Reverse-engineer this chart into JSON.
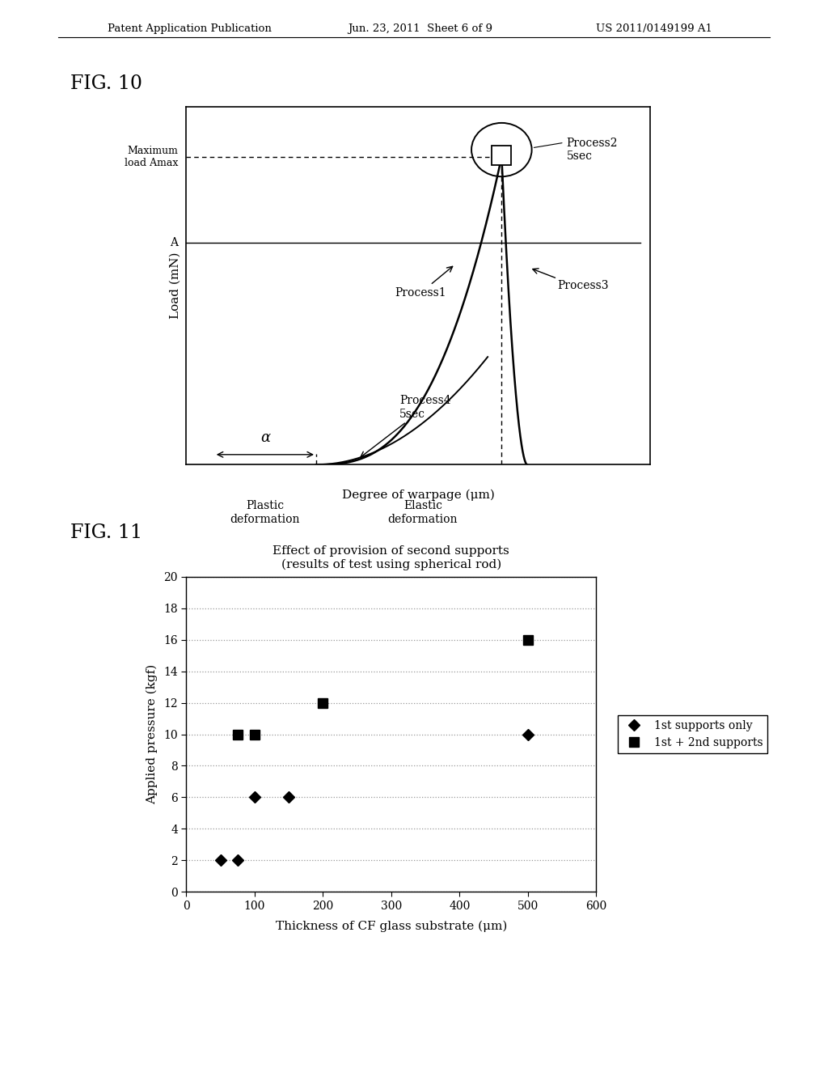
{
  "page_header_left": "Patent Application Publication",
  "page_header_mid": "Jun. 23, 2011  Sheet 6 of 9",
  "page_header_right": "US 2011/0149199 A1",
  "fig10_label": "FIG. 10",
  "fig10_ylabel": "Load (mN)",
  "fig10_xlabel": "Degree of warpage (μm)",
  "fig10_ann_max": "Maximum\nload Amax",
  "fig10_ann_A": "A",
  "fig10_ann_process1": "Process1",
  "fig10_ann_process2": "Process2\n5sec",
  "fig10_ann_process3": "Process3",
  "fig10_ann_process4": "Process4\n5sec",
  "fig10_ann_alpha": "α",
  "fig10_ann_plastic": "Plastic\ndeformation",
  "fig10_ann_elastic": "Elastic\ndeformation",
  "fig11_label": "FIG. 11",
  "fig11_title_line1": "Effect of provision of second supports",
  "fig11_title_line2": "(results of test using spherical rod)",
  "fig11_ylabel": "Applied pressure (kgf)",
  "fig11_xlabel": "Thickness of CF glass substrate (μm)",
  "fig11_xlim": [
    0,
    600
  ],
  "fig11_ylim": [
    0,
    20
  ],
  "fig11_xticks": [
    0,
    100,
    200,
    300,
    400,
    500,
    600
  ],
  "fig11_yticks": [
    0,
    2,
    4,
    6,
    8,
    10,
    12,
    14,
    16,
    18,
    20
  ],
  "fig11_series1_x": [
    50,
    75,
    100,
    150,
    500
  ],
  "fig11_series1_y": [
    2,
    2,
    6,
    6,
    10
  ],
  "fig11_series2_x": [
    75,
    100,
    200,
    500
  ],
  "fig11_series2_y": [
    10,
    10,
    12,
    16
  ],
  "fig11_legend1": "1st supports only",
  "fig11_legend2": "1st + 2nd supports",
  "background_color": "#ffffff",
  "text_color": "#000000",
  "grid_color": "#999999"
}
